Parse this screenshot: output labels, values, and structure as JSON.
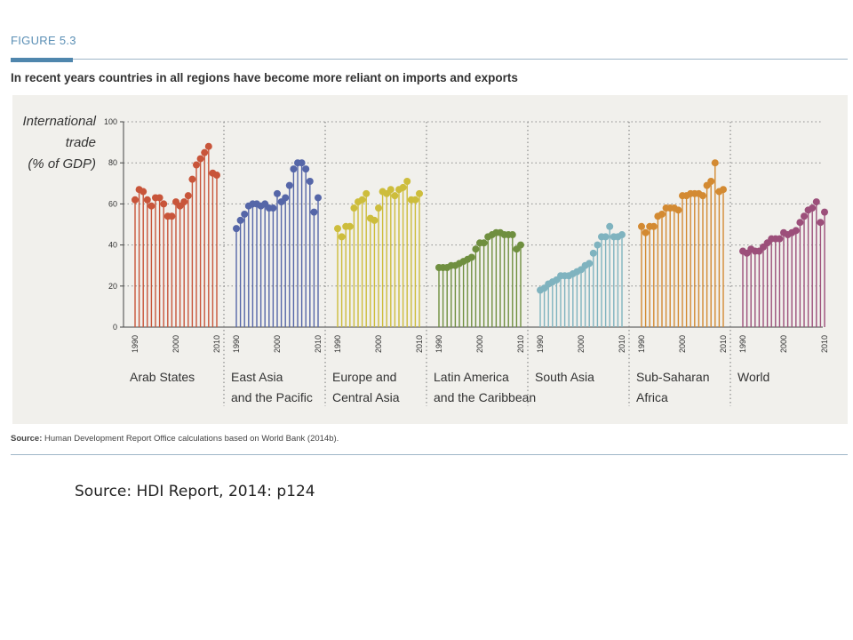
{
  "figure_label": "FIGURE 5.3",
  "headline": "In recent years countries in all regions have become more reliant on imports and exports",
  "source_prefix": "Source:",
  "source_text": " Human Development Report Office calculations based on World Bank (2014b).",
  "caption": "Source: HDI Report, 2014: p124",
  "colors": {
    "accent": "#4f86ad",
    "panel_bg": "#f1f0ec"
  },
  "chart_data": {
    "type": "bar",
    "style": "lollipop",
    "ylabel": "International trade (% of GDP)",
    "ylabel_lines": [
      "International",
      "trade",
      "(% of GDP)"
    ],
    "ylim": [
      0,
      100
    ],
    "yticks": [
      0,
      20,
      40,
      60,
      80,
      100
    ],
    "xticks": [
      "1990",
      "2000",
      "2010"
    ],
    "x": [
      1990,
      1991,
      1992,
      1993,
      1994,
      1995,
      1996,
      1997,
      1998,
      1999,
      2000,
      2001,
      2002,
      2003,
      2004,
      2005,
      2006,
      2007,
      2008,
      2009,
      2010
    ],
    "grid": true,
    "series": [
      {
        "name": "Arab States",
        "label_lines": [
          "Arab States"
        ],
        "color": "#c8553a",
        "values": [
          62,
          67,
          66,
          62,
          59,
          63,
          63,
          60,
          54,
          54,
          61,
          59,
          61,
          64,
          72,
          79,
          82,
          85,
          88,
          75,
          74
        ]
      },
      {
        "name": "East Asia and the Pacific",
        "label_lines": [
          "East Asia",
          "and the Pacific"
        ],
        "color": "#5566a8",
        "values": [
          48,
          52,
          55,
          59,
          60,
          60,
          59,
          60,
          58,
          58,
          65,
          61,
          63,
          69,
          77,
          80,
          80,
          77,
          71,
          56,
          63
        ]
      },
      {
        "name": "Europe and Central Asia",
        "label_lines": [
          "Europe and",
          "Central Asia"
        ],
        "color": "#cdbd3c",
        "values": [
          48,
          44,
          49,
          49,
          58,
          61,
          62,
          65,
          53,
          52,
          58,
          66,
          65,
          67,
          64,
          67,
          68,
          71,
          62,
          62,
          65
        ]
      },
      {
        "name": "Latin America and the Caribbean",
        "label_lines": [
          "Latin America",
          "and the Caribbean"
        ],
        "color": "#6f8f3f",
        "values": [
          29,
          29,
          29,
          30,
          30,
          31,
          32,
          33,
          34,
          38,
          41,
          41,
          44,
          45,
          46,
          46,
          45,
          45,
          45,
          38,
          40
        ]
      },
      {
        "name": "South Asia",
        "label_lines": [
          "South Asia"
        ],
        "color": "#7fb3bf",
        "values": [
          18,
          19,
          21,
          22,
          23,
          25,
          25,
          25,
          26,
          27,
          28,
          30,
          31,
          36,
          40,
          44,
          44,
          49,
          44,
          44,
          45
        ]
      },
      {
        "name": "Sub-Saharan Africa",
        "label_lines": [
          "Sub-Saharan",
          "Africa"
        ],
        "color": "#d38a32",
        "values": [
          49,
          46,
          49,
          49,
          54,
          55,
          58,
          58,
          58,
          57,
          64,
          64,
          65,
          65,
          65,
          64,
          69,
          71,
          80,
          66,
          67
        ]
      },
      {
        "name": "World",
        "label_lines": [
          "World"
        ],
        "color": "#9c4f7a",
        "values": [
          37,
          36,
          38,
          37,
          37,
          39,
          41,
          43,
          43,
          43,
          46,
          45,
          46,
          47,
          51,
          54,
          57,
          58,
          61,
          51,
          56
        ]
      }
    ]
  }
}
